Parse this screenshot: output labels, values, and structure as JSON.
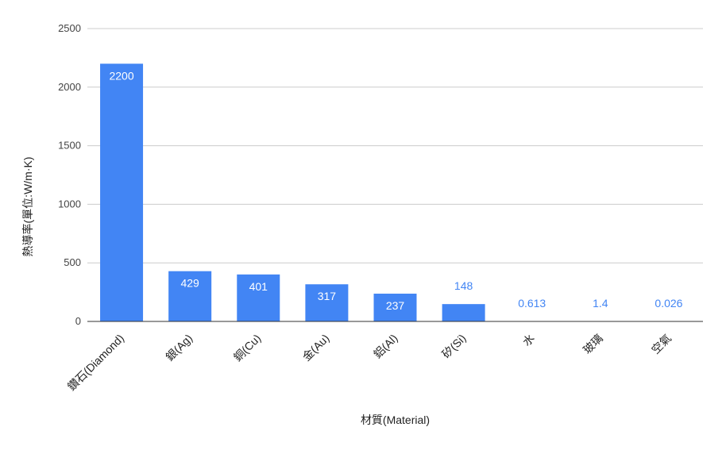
{
  "chart_data": {
    "type": "bar",
    "categories": [
      "鑽石(Diamond)",
      "銀(Ag)",
      "銅(Cu)",
      "金(Au)",
      "鋁(Al)",
      "矽(Si)",
      "水",
      "玻璃",
      "空氣"
    ],
    "values": [
      2200,
      429,
      401,
      317,
      237,
      148,
      0.613,
      1.4,
      0.026
    ],
    "data_labels": [
      "2200",
      "429",
      "401",
      "317",
      "237",
      "148",
      "0.613",
      "1.4",
      "0.026"
    ],
    "xlabel": "材質(Material)",
    "ylabel": "熱導率(單位:W/m·K)",
    "ylim": [
      0,
      2500
    ],
    "yticks": [
      0,
      500,
      1000,
      1500,
      2000,
      2500
    ],
    "grid": true,
    "legend": "none",
    "colors": {
      "bar": "#4285f4",
      "label_inside": "#ffffff",
      "label_outside": "#4285f4",
      "grid": "#cccccc",
      "axis": "#333333"
    }
  }
}
